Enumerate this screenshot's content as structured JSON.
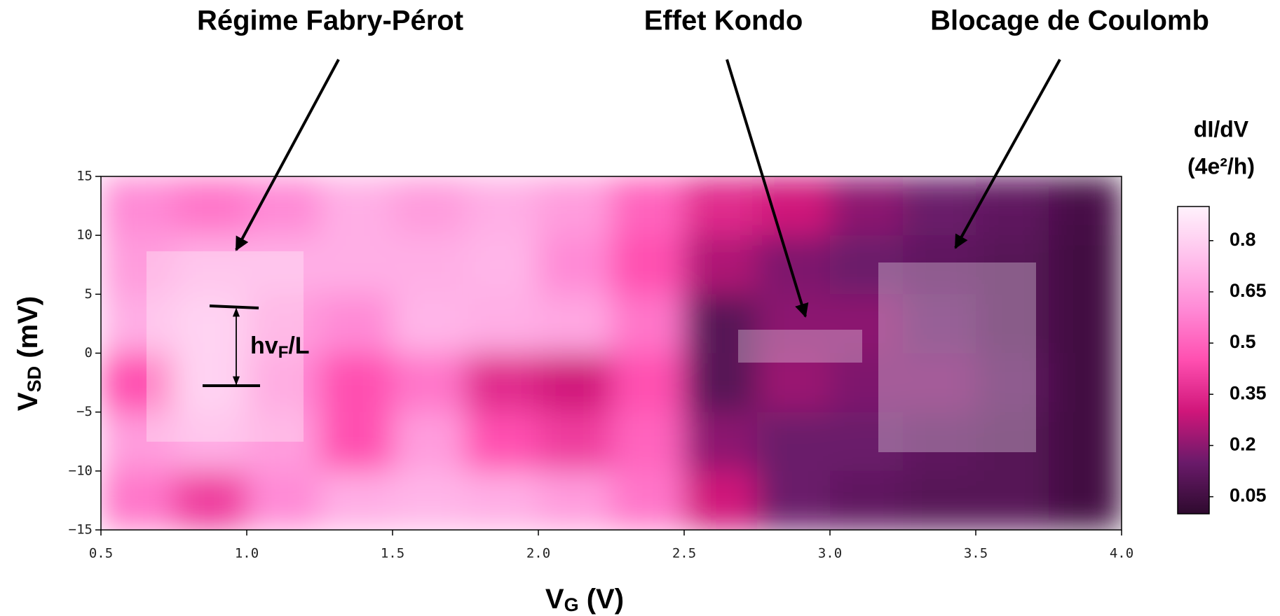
{
  "chart_data": {
    "type": "heatmap",
    "annotations": [
      "Régime Fabry-Pérot",
      "Effet Kondo",
      "Blocage de Coulomb"
    ],
    "spacing_label": {
      "text": "hv",
      "sub": "F",
      "tail": "/L"
    },
    "xlabel": {
      "text": "V",
      "sub": "G",
      "tail": " (V)"
    },
    "ylabel": {
      "text": "V",
      "sub": "SD",
      "tail": " (mV)"
    },
    "xlim": [
      0.5,
      4.0
    ],
    "xticks": [
      0.5,
      {
        "value": 1,
        "label": "1.0"
      },
      1.5,
      {
        "value": 2,
        "label": "2.0"
      },
      2.5,
      {
        "value": 3,
        "label": "3.0"
      },
      3.5,
      {
        "value": 4,
        "label": "4.0"
      }
    ],
    "ylim": [
      -15,
      15
    ],
    "yticks": [
      15,
      10,
      5,
      0,
      {
        "value": -5,
        "label": "−5"
      },
      {
        "value": -10,
        "label": "−10"
      },
      {
        "value": -15,
        "label": "−15"
      }
    ],
    "x": [
      0.625,
      0.875,
      1.125,
      1.375,
      1.625,
      1.875,
      2.125,
      2.375,
      2.625,
      2.875,
      3.125,
      3.375,
      3.625,
      3.875
    ],
    "y": [
      12.5,
      7.5,
      2.5,
      -2.5,
      -7.5,
      -12.5
    ],
    "z": [
      [
        0.6,
        0.55,
        0.6,
        0.7,
        0.65,
        0.7,
        0.65,
        0.5,
        0.35,
        0.3,
        0.2,
        0.15,
        0.12,
        0.06
      ],
      [
        0.65,
        0.7,
        0.7,
        0.7,
        0.7,
        0.72,
        0.6,
        0.45,
        0.25,
        0.18,
        0.15,
        0.12,
        0.1,
        0.05
      ],
      [
        0.7,
        0.75,
        0.65,
        0.6,
        0.72,
        0.7,
        0.68,
        0.55,
        0.1,
        0.2,
        0.2,
        0.15,
        0.1,
        0.05
      ],
      [
        0.45,
        0.75,
        0.6,
        0.45,
        0.55,
        0.35,
        0.3,
        0.45,
        0.1,
        0.22,
        0.18,
        0.18,
        0.12,
        0.05
      ],
      [
        0.65,
        0.7,
        0.65,
        0.45,
        0.65,
        0.45,
        0.4,
        0.5,
        0.2,
        0.15,
        0.15,
        0.12,
        0.1,
        0.05
      ],
      [
        0.55,
        0.4,
        0.6,
        0.7,
        0.72,
        0.7,
        0.65,
        0.55,
        0.3,
        0.15,
        0.12,
        0.1,
        0.1,
        0.05
      ]
    ],
    "zlim": [
      0,
      0.9
    ],
    "colorscale": [
      [
        0,
        "#2e0a2e"
      ],
      [
        0.15,
        "#6a1a6a"
      ],
      [
        0.3,
        "#d0167a"
      ],
      [
        0.45,
        "#ff4fb0"
      ],
      [
        0.6,
        "#ff8ad6"
      ],
      [
        0.75,
        "#ffc0ec"
      ],
      [
        0.9,
        "#fff2fc"
      ]
    ],
    "colorbar": {
      "title": "dI/dV",
      "unit": "(4e²/h)",
      "ticks": [
        0.05,
        0.2,
        0.35,
        0.5,
        0.65,
        0.8
      ]
    }
  }
}
